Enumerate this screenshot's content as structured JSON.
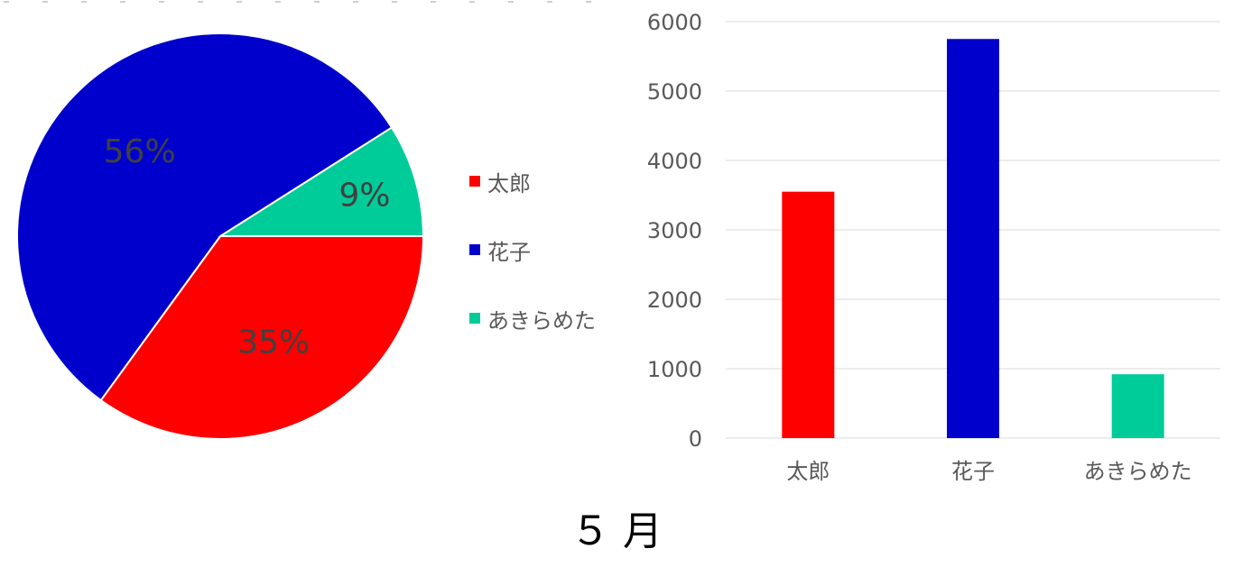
{
  "chart_data": [
    {
      "type": "pie",
      "categories": [
        "太郎",
        "花子",
        "あきらめた"
      ],
      "values": [
        35,
        56,
        9
      ],
      "value_labels": [
        "35%",
        "56%",
        "9%"
      ],
      "colors": [
        "#ff0000",
        "#0000cc",
        "#00cc99"
      ],
      "legend": "right"
    },
    {
      "type": "bar",
      "categories": [
        "太郎",
        "花子",
        "あきらめた"
      ],
      "values": [
        3550,
        5750,
        920
      ],
      "colors": [
        "#ff0000",
        "#0000cc",
        "#00cc99"
      ],
      "ylim": [
        0,
        6000
      ],
      "yticks": [
        "0",
        "1000",
        "2000",
        "3000",
        "4000",
        "5000",
        "6000"
      ],
      "grid": true
    }
  ],
  "footer_title": "５ 月"
}
